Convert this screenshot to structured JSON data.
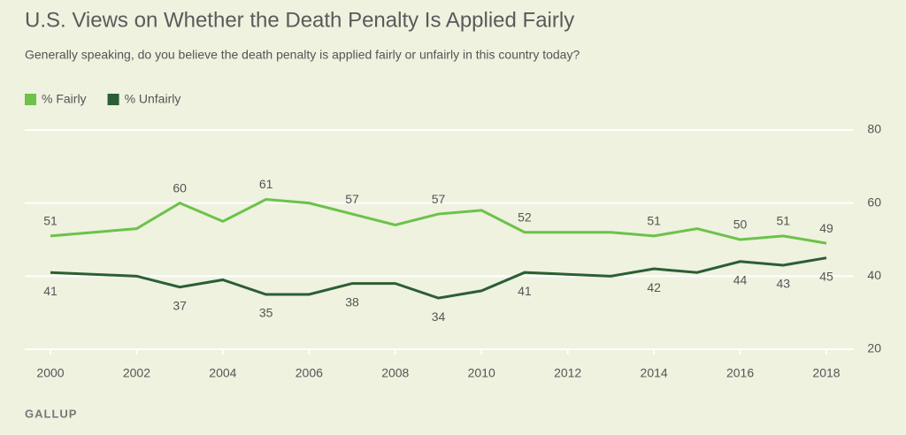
{
  "chart_data": {
    "type": "line",
    "title": "U.S. Views on Whether the Death Penalty Is Applied Fairly",
    "subtitle": "Generally speaking, do you believe the death penalty is applied fairly or unfairly in this country today?",
    "source": "GALLUP",
    "x": [
      2000,
      2002,
      2003,
      2004,
      2005,
      2006,
      2007,
      2008,
      2009,
      2010,
      2011,
      2013,
      2014,
      2015,
      2016,
      2017,
      2018
    ],
    "series": [
      {
        "name": "% Fairly",
        "color": "#6cc24a",
        "values": [
          51,
          53,
          60,
          55,
          61,
          60,
          57,
          54,
          57,
          58,
          52,
          52,
          51,
          53,
          50,
          51,
          49
        ],
        "value_labels": [
          "51",
          null,
          "60",
          null,
          "61",
          null,
          "57",
          null,
          "57",
          null,
          "52",
          null,
          "51",
          null,
          "50",
          "51",
          "49"
        ]
      },
      {
        "name": "% Unfairly",
        "color": "#2b5e35",
        "values": [
          41,
          40,
          37,
          39,
          35,
          35,
          38,
          38,
          34,
          36,
          41,
          40,
          42,
          41,
          44,
          43,
          45
        ],
        "value_labels": [
          "41",
          null,
          "37",
          null,
          "35",
          null,
          "38",
          null,
          "34",
          null,
          "41",
          null,
          "42",
          null,
          "44",
          "43",
          "45"
        ]
      }
    ],
    "xlim": [
      2000,
      2018
    ],
    "xticks": [
      2000,
      2002,
      2004,
      2006,
      2008,
      2010,
      2012,
      2014,
      2016,
      2018
    ],
    "ylim": [
      20,
      80
    ],
    "yticks": [
      20,
      40,
      60,
      80
    ],
    "grid": true,
    "legend": "top-left"
  }
}
